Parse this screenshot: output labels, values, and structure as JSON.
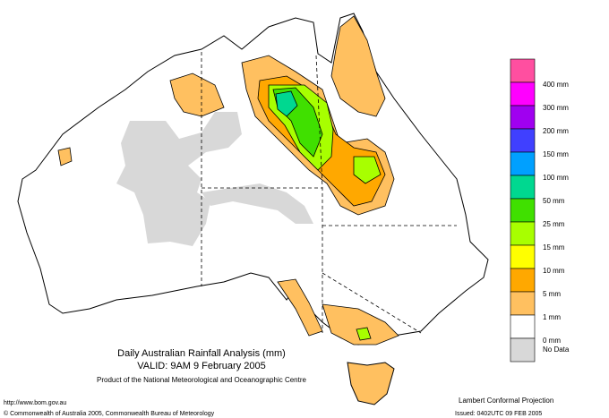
{
  "map": {
    "title": "Daily Australian Rainfall Analysis (mm)",
    "valid": "VALID: 9AM  9 February 2005",
    "product": "Product of the National Meteorological and Oceanographic Centre",
    "url": "http://www.bom.gov.au",
    "copyright": "© Commonwealth of Australia 2005, Commonwealth Bureau of Meteorology",
    "projection": "Lambert Conformal Projection",
    "issued": "Issued: 0402UTC 09 FEB 2005"
  },
  "legend": {
    "colors": [
      "#ff4fa0",
      "#ff00ff",
      "#a000f0",
      "#4040ff",
      "#00a0ff",
      "#00d890",
      "#40e000",
      "#a8ff00",
      "#ffff00",
      "#ffa800",
      "#ffc060",
      "#ffffff",
      "#d8d8d8"
    ],
    "levels": [
      "400 mm",
      "300 mm",
      "200 mm",
      "150 mm",
      "100 mm",
      "50 mm",
      "25 mm",
      "15 mm",
      "10 mm",
      "5 mm",
      "1 mm",
      "0 mm"
    ],
    "no_data": "No Data"
  }
}
